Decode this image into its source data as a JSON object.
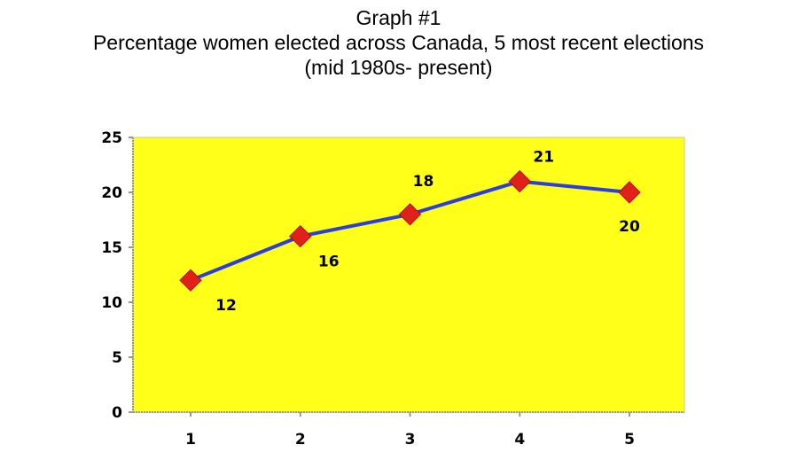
{
  "title_lines": [
    "Graph #1",
    "Percentage women elected across Canada, 5 most recent elections",
    "(mid 1980s- present)"
  ],
  "colors": {
    "plot_background": "#ffff1a",
    "line": "#2b3fe0",
    "marker": "#e0201a"
  },
  "chart_data": {
    "type": "line",
    "categories": [
      "1",
      "2",
      "3",
      "4",
      "5"
    ],
    "series": [
      {
        "values": [
          12,
          16,
          18,
          21,
          20
        ]
      }
    ],
    "data_labels": [
      "12",
      "16",
      "18",
      "21",
      "20"
    ],
    "ylim": [
      0,
      25
    ],
    "yticks": [
      0,
      5,
      10,
      15,
      20,
      25
    ],
    "grid": false,
    "legend": "none",
    "marker": "diamond"
  }
}
